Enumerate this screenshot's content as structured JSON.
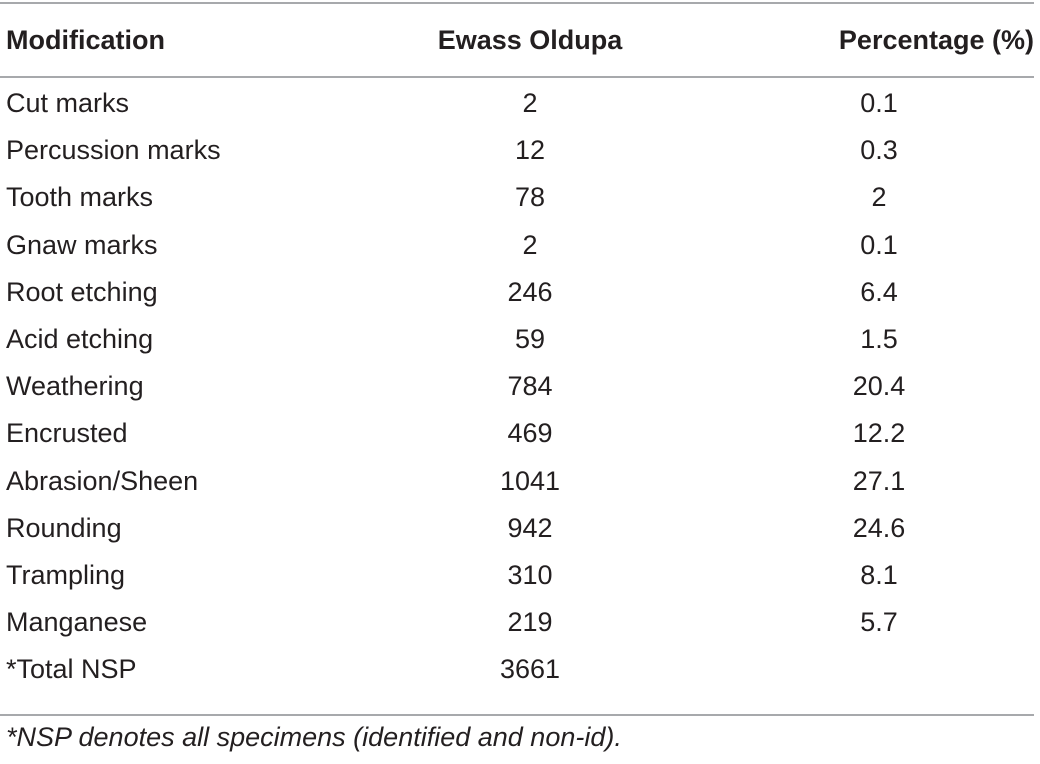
{
  "table": {
    "headers": [
      "Modification",
      "Ewass Oldupa",
      "Percentage (%)"
    ],
    "rows": [
      [
        "Cut marks",
        "2",
        "0.1"
      ],
      [
        "Percussion marks",
        "12",
        "0.3"
      ],
      [
        "Tooth marks",
        "78",
        "2"
      ],
      [
        "Gnaw marks",
        "2",
        "0.1"
      ],
      [
        "Root etching",
        "246",
        "6.4"
      ],
      [
        "Acid etching",
        "59",
        "1.5"
      ],
      [
        "Weathering",
        "784",
        "20.4"
      ],
      [
        "Encrusted",
        "469",
        "12.2"
      ],
      [
        "Abrasion/Sheen",
        "1041",
        "27.1"
      ],
      [
        "Rounding",
        "942",
        "24.6"
      ],
      [
        "Trampling",
        "310",
        "8.1"
      ],
      [
        "Manganese",
        "219",
        "5.7"
      ],
      [
        "*Total NSP",
        "3661",
        ""
      ]
    ]
  },
  "footnote": "*NSP denotes all specimens (identified and non-id)."
}
